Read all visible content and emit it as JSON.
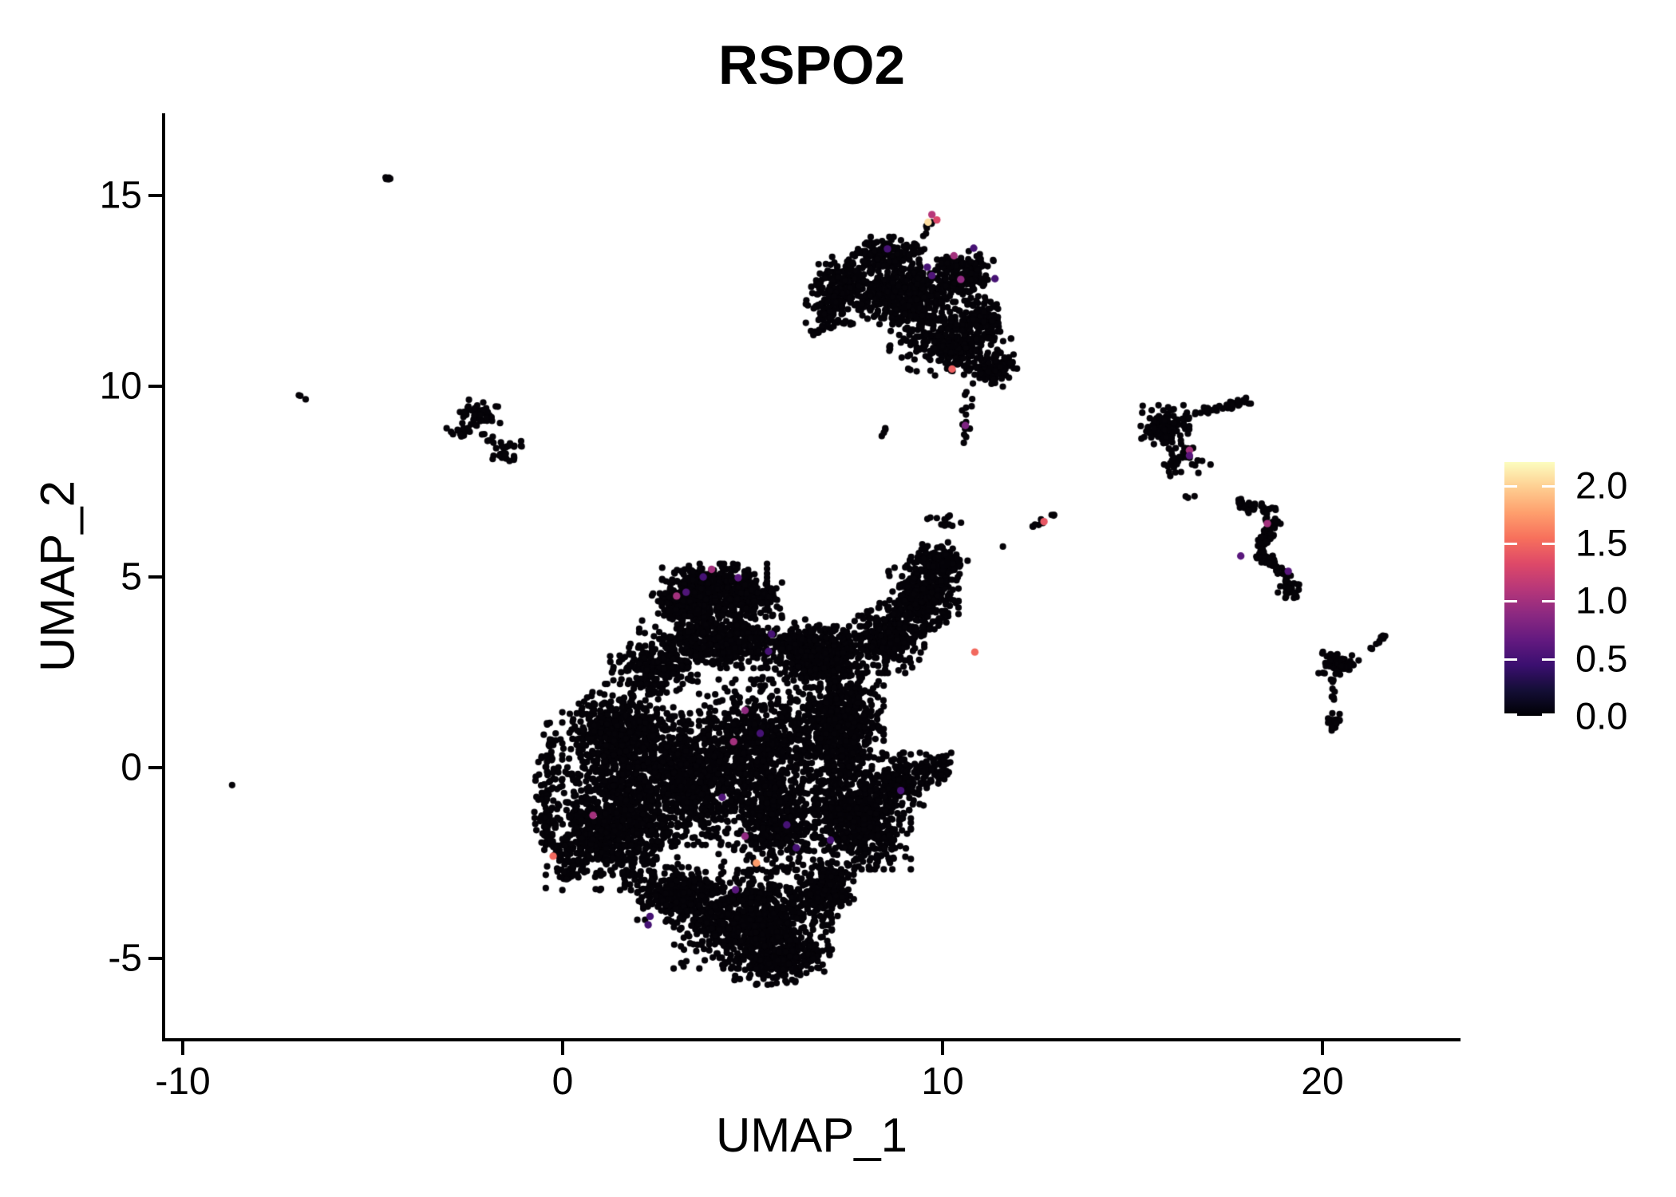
{
  "title": "RSPO2",
  "colors": {
    "background": "#ffffff",
    "axis": "#000000",
    "text": "#000000",
    "point_zero": "#050308"
  },
  "chart_data": {
    "type": "scatter",
    "title": "RSPO2",
    "xlabel": "UMAP_1",
    "ylabel": "UMAP_2",
    "grid": false,
    "xlim": [
      -10.5,
      23.6
    ],
    "ylim": [
      -7.1,
      17.1
    ],
    "x_tick_labels": [
      "-10",
      "0",
      "10",
      "20"
    ],
    "x_tick_values": [
      -10,
      0,
      10,
      20
    ],
    "y_tick_labels": [
      "15",
      "10",
      "5",
      "0",
      "-5"
    ],
    "y_tick_values": [
      15,
      10,
      5,
      0,
      -5
    ],
    "legend": {
      "position": "right",
      "colormap": "magma",
      "vmin": 0.0,
      "vmax": 2.2,
      "tick_labels": [
        "2.0",
        "1.5",
        "1.0",
        "0.5",
        "0.0"
      ],
      "tick_values": [
        2.0,
        1.5,
        1.0,
        0.5,
        0.0
      ],
      "gradient_stops": [
        "#000004",
        "#140e36",
        "#3b0f70",
        "#641a80",
        "#8c2981",
        "#b73779",
        "#de4968",
        "#f7705c",
        "#fe9f6d",
        "#fece91",
        "#fcfdbf"
      ]
    },
    "marker": {
      "radius_px": 4.1
    },
    "clusters": [
      {
        "type": "gauss",
        "x": 4.0,
        "y": 4.7,
        "sx": 0.6,
        "sy": 0.28,
        "n": 380
      },
      {
        "type": "gauss",
        "x": 3.3,
        "y": 4.25,
        "sx": 0.42,
        "sy": 0.24,
        "n": 200
      },
      {
        "type": "gauss",
        "x": 4.9,
        "y": 4.4,
        "sx": 0.38,
        "sy": 0.22,
        "n": 170
      },
      {
        "type": "gauss",
        "x": 4.2,
        "y": 3.3,
        "sx": 0.95,
        "sy": 0.3,
        "n": 520
      },
      {
        "type": "gauss",
        "x": 2.4,
        "y": 2.6,
        "sx": 0.5,
        "sy": 0.28,
        "n": 200
      },
      {
        "type": "gauss",
        "x": 6.3,
        "y": 3.05,
        "sx": 0.45,
        "sy": 0.3,
        "n": 240
      },
      {
        "type": "gauss",
        "x": 1.6,
        "y": 0.7,
        "sx": 0.7,
        "sy": 0.65,
        "n": 780
      },
      {
        "type": "gauss",
        "x": 1.35,
        "y": -1.6,
        "sx": 0.78,
        "sy": 0.7,
        "n": 880
      },
      {
        "type": "gauss",
        "x": 3.4,
        "y": -0.3,
        "sx": 0.6,
        "sy": 0.75,
        "n": 650
      },
      {
        "type": "gauss",
        "x": 5.2,
        "y": 0.7,
        "sx": 0.7,
        "sy": 0.7,
        "n": 600
      },
      {
        "type": "gauss",
        "x": 5.6,
        "y": -1.3,
        "sx": 0.65,
        "sy": 0.6,
        "n": 550
      },
      {
        "type": "gauss",
        "x": 7.3,
        "y": 1.0,
        "sx": 0.5,
        "sy": 0.85,
        "n": 700
      },
      {
        "type": "gauss",
        "x": 7.0,
        "y": 2.9,
        "sx": 0.45,
        "sy": 0.35,
        "n": 300
      },
      {
        "type": "gauss",
        "x": 8.6,
        "y": 3.4,
        "sx": 0.4,
        "sy": 0.4,
        "n": 300
      },
      {
        "type": "gauss",
        "x": 9.5,
        "y": 4.5,
        "sx": 0.4,
        "sy": 0.38,
        "n": 320
      },
      {
        "type": "gauss",
        "x": 9.9,
        "y": 5.4,
        "sx": 0.33,
        "sy": 0.22,
        "n": 130
      },
      {
        "type": "gauss",
        "x": 7.9,
        "y": -1.4,
        "sx": 0.55,
        "sy": 0.55,
        "n": 600
      },
      {
        "type": "gauss",
        "x": 8.9,
        "y": -0.3,
        "sx": 0.35,
        "sy": 0.3,
        "n": 170
      },
      {
        "type": "gauss",
        "x": 9.8,
        "y": 0.0,
        "sx": 0.22,
        "sy": 0.18,
        "n": 55
      },
      {
        "type": "gauss",
        "x": 4.9,
        "y": -4.0,
        "sx": 0.95,
        "sy": 0.55,
        "n": 820
      },
      {
        "type": "gauss",
        "x": 5.7,
        "y": -5.0,
        "sx": 0.6,
        "sy": 0.3,
        "n": 280
      },
      {
        "type": "gauss",
        "x": 3.0,
        "y": -3.3,
        "sx": 0.45,
        "sy": 0.3,
        "n": 240
      },
      {
        "type": "gauss",
        "x": 6.9,
        "y": -3.2,
        "sx": 0.4,
        "sy": 0.3,
        "n": 220
      },
      {
        "type": "streak",
        "x1": -0.3,
        "y1": 1.2,
        "x2": -0.5,
        "y2": -1.5,
        "w": 0.15,
        "n": 70
      },
      {
        "type": "streak",
        "x1": -0.5,
        "y1": -1.5,
        "x2": 0.2,
        "y2": -2.9,
        "w": 0.15,
        "n": 60
      },
      {
        "type": "gauss",
        "x": 9.0,
        "y": 12.4,
        "sx": 0.62,
        "sy": 0.4,
        "n": 500
      },
      {
        "type": "gauss",
        "x": 7.35,
        "y": 12.7,
        "sx": 0.35,
        "sy": 0.3,
        "n": 150
      },
      {
        "type": "gauss",
        "x": 8.6,
        "y": 13.5,
        "sx": 0.42,
        "sy": 0.18,
        "n": 140
      },
      {
        "type": "gauss",
        "x": 10.6,
        "y": 12.9,
        "sx": 0.35,
        "sy": 0.3,
        "n": 160
      },
      {
        "type": "gauss",
        "x": 11.0,
        "y": 11.6,
        "sx": 0.35,
        "sy": 0.28,
        "n": 160
      },
      {
        "type": "gauss",
        "x": 11.3,
        "y": 10.45,
        "sx": 0.32,
        "sy": 0.2,
        "n": 110
      },
      {
        "type": "gauss",
        "x": 10.35,
        "y": 10.95,
        "sx": 0.28,
        "sy": 0.24,
        "n": 110
      },
      {
        "type": "gauss",
        "x": 9.75,
        "y": 11.2,
        "sx": 0.5,
        "sy": 0.4,
        "n": 150
      },
      {
        "type": "streak",
        "x1": 10.55,
        "y1": 8.3,
        "x2": 10.68,
        "y2": 9.9,
        "w": 0.06,
        "n": 15
      },
      {
        "type": "streak",
        "x1": 6.45,
        "y1": 11.35,
        "x2": 7.5,
        "y2": 11.7,
        "w": 0.06,
        "n": 16
      },
      {
        "type": "gauss",
        "x": 7.0,
        "y": 12.05,
        "sx": 0.26,
        "sy": 0.22,
        "n": 70
      },
      {
        "type": "streak",
        "x1": 9.55,
        "y1": 13.85,
        "x2": 9.7,
        "y2": 14.35,
        "w": 0.04,
        "n": 7
      },
      {
        "type": "gauss",
        "x": -2.2,
        "y": 9.3,
        "sx": 0.24,
        "sy": 0.15,
        "n": 42
      },
      {
        "type": "gauss",
        "x": -2.7,
        "y": 8.85,
        "sx": 0.17,
        "sy": 0.1,
        "n": 16
      },
      {
        "type": "gauss",
        "x": -1.45,
        "y": 8.3,
        "sx": 0.22,
        "sy": 0.15,
        "n": 30
      },
      {
        "type": "streak",
        "x1": -2.45,
        "y1": 9.0,
        "x2": -1.8,
        "y2": 8.55,
        "w": 0.05,
        "n": 8
      },
      {
        "type": "gauss",
        "x": 15.85,
        "y": 8.95,
        "sx": 0.28,
        "sy": 0.24,
        "n": 130
      },
      {
        "type": "streak",
        "x1": 16.35,
        "y1": 9.2,
        "x2": 18.15,
        "y2": 9.65,
        "w": 0.06,
        "n": 40
      },
      {
        "type": "gauss",
        "x": 16.3,
        "y": 8.15,
        "sx": 0.35,
        "sy": 0.22,
        "n": 40
      },
      {
        "type": "gauss",
        "x": 16.5,
        "y": 7.15,
        "sx": 0.08,
        "sy": 0.06,
        "n": 3
      },
      {
        "type": "streak",
        "x1": 17.75,
        "y1": 6.95,
        "x2": 18.8,
        "y2": 6.6,
        "w": 0.09,
        "n": 42
      },
      {
        "type": "streak",
        "x1": 18.78,
        "y1": 6.55,
        "x2": 18.28,
        "y2": 5.72,
        "w": 0.09,
        "n": 42
      },
      {
        "type": "streak",
        "x1": 18.3,
        "y1": 5.65,
        "x2": 19.0,
        "y2": 5.05,
        "w": 0.09,
        "n": 46
      },
      {
        "type": "gauss",
        "x": 19.15,
        "y": 4.75,
        "sx": 0.14,
        "sy": 0.13,
        "n": 30
      },
      {
        "type": "gauss",
        "x": 19.35,
        "y": 4.55,
        "sx": 0.05,
        "sy": 0.05,
        "n": 3
      },
      {
        "type": "gauss",
        "x": 20.45,
        "y": 2.7,
        "sx": 0.24,
        "sy": 0.17,
        "n": 55
      },
      {
        "type": "streak",
        "x1": 21.28,
        "y1": 3.12,
        "x2": 21.68,
        "y2": 3.48,
        "w": 0.03,
        "n": 9
      },
      {
        "type": "gauss",
        "x": 20.3,
        "y": 1.2,
        "sx": 0.1,
        "sy": 0.13,
        "n": 26
      },
      {
        "type": "gauss",
        "x": 20.32,
        "y": 1.95,
        "sx": 0.05,
        "sy": 0.14,
        "n": 5
      },
      {
        "type": "gauss",
        "x": 20.25,
        "y": 2.25,
        "sx": 0.04,
        "sy": 0.04,
        "n": 2
      },
      {
        "type": "streak",
        "x1": -4.75,
        "y1": 15.58,
        "x2": -4.5,
        "y2": 15.35,
        "w": 0.03,
        "n": 6
      },
      {
        "type": "gauss",
        "x": -6.88,
        "y": 9.7,
        "sx": 0.06,
        "sy": 0.05,
        "n": 3
      },
      {
        "type": "gauss",
        "x": -8.7,
        "y": -0.45,
        "sx": 0.015,
        "sy": 0.015,
        "n": 1
      },
      {
        "type": "streak",
        "x1": 12.32,
        "y1": 6.32,
        "x2": 13.0,
        "y2": 6.66,
        "w": 0.04,
        "n": 11
      },
      {
        "type": "gauss",
        "x": 11.6,
        "y": 5.82,
        "sx": 0.02,
        "sy": 0.02,
        "n": 1
      },
      {
        "type": "gauss",
        "x": 10.05,
        "y": 6.45,
        "sx": 0.28,
        "sy": 0.1,
        "n": 12
      },
      {
        "type": "gauss",
        "x": 8.45,
        "y": 8.8,
        "sx": 0.1,
        "sy": 0.1,
        "n": 4
      }
    ],
    "expressing_points": [
      [
        9.72,
        14.5,
        1.1
      ],
      [
        9.62,
        14.3,
        2.05
      ],
      [
        9.85,
        14.36,
        1.3
      ],
      [
        8.55,
        13.6,
        0.5
      ],
      [
        10.3,
        13.42,
        1.0
      ],
      [
        10.82,
        13.62,
        0.5
      ],
      [
        9.6,
        13.12,
        0.5
      ],
      [
        9.72,
        12.9,
        0.55
      ],
      [
        10.48,
        12.8,
        0.9
      ],
      [
        11.38,
        12.82,
        0.5
      ],
      [
        10.25,
        10.45,
        1.45
      ],
      [
        10.6,
        8.97,
        0.8
      ],
      [
        3.92,
        5.2,
        1.0
      ],
      [
        3.7,
        5.0,
        0.5
      ],
      [
        3.25,
        4.6,
        0.55
      ],
      [
        3.0,
        4.5,
        1.0
      ],
      [
        4.62,
        4.98,
        0.6
      ],
      [
        5.5,
        3.5,
        0.5
      ],
      [
        5.42,
        3.05,
        0.5
      ],
      [
        4.8,
        1.5,
        0.9
      ],
      [
        5.2,
        0.9,
        0.5
      ],
      [
        4.5,
        0.68,
        1.0
      ],
      [
        4.2,
        -0.78,
        0.55
      ],
      [
        4.8,
        -1.8,
        0.9
      ],
      [
        5.9,
        -1.5,
        0.5
      ],
      [
        6.15,
        -2.1,
        0.5
      ],
      [
        7.05,
        -1.9,
        0.5
      ],
      [
        5.1,
        -2.5,
        1.75
      ],
      [
        -0.25,
        -2.32,
        1.5
      ],
      [
        0.8,
        -1.25,
        1.0
      ],
      [
        2.3,
        -3.9,
        0.5
      ],
      [
        4.55,
        -3.2,
        0.6
      ],
      [
        2.25,
        -4.12,
        0.5
      ],
      [
        8.9,
        -0.6,
        0.5
      ],
      [
        10.85,
        3.03,
        1.5
      ],
      [
        12.67,
        6.45,
        1.4
      ],
      [
        16.5,
        8.32,
        1.0
      ],
      [
        16.5,
        8.18,
        0.6
      ],
      [
        18.55,
        6.4,
        1.0
      ],
      [
        17.85,
        5.55,
        0.6
      ],
      [
        19.1,
        5.15,
        0.6
      ]
    ]
  }
}
